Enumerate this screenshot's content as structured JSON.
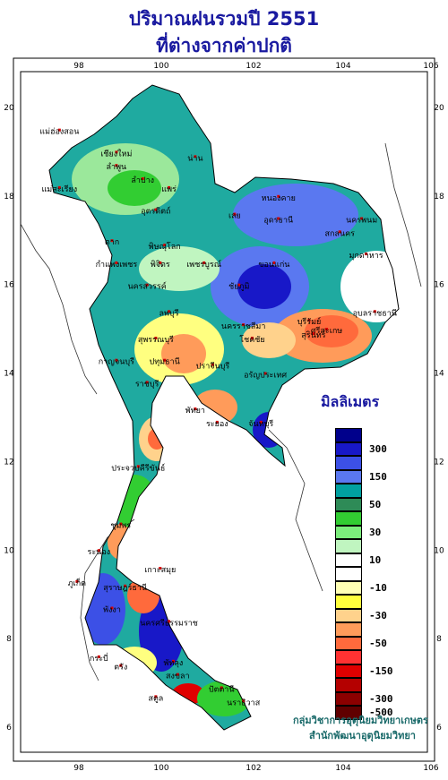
{
  "title": {
    "line1": "ปริมาณฝนรวมปี 2551",
    "line2": "ที่ต่างจากค่าปกติ"
  },
  "axes": {
    "lon_ticks": [
      "98",
      "100",
      "102",
      "104",
      "106"
    ],
    "lat_ticks": [
      "20",
      "18",
      "16",
      "14",
      "12",
      "10",
      "8",
      "6"
    ]
  },
  "legend": {
    "unit": "มิลลิเมตร",
    "bins": [
      {
        "color": "#00008b",
        "label": ""
      },
      {
        "color": "#1818c8",
        "label": "300"
      },
      {
        "color": "#3c50e6",
        "label": ""
      },
      {
        "color": "#5a78f0",
        "label": "150"
      },
      {
        "color": "#00a0a0",
        "label": ""
      },
      {
        "color": "#2e8b57",
        "label": "50"
      },
      {
        "color": "#32cd32",
        "label": ""
      },
      {
        "color": "#7ced7c",
        "label": "30"
      },
      {
        "color": "#c0f5c0",
        "label": ""
      },
      {
        "color": "#ffffff",
        "label": "10"
      },
      {
        "color": "#ffffff",
        "label": ""
      },
      {
        "color": "#ffffb4",
        "label": "-10"
      },
      {
        "color": "#ffff3c",
        "label": ""
      },
      {
        "color": "#ffd28c",
        "label": "-30"
      },
      {
        "color": "#ff9b5a",
        "label": ""
      },
      {
        "color": "#ff6a3c",
        "label": "-50"
      },
      {
        "color": "#ff3232",
        "label": ""
      },
      {
        "color": "#e00000",
        "label": "-150"
      },
      {
        "color": "#b40000",
        "label": ""
      },
      {
        "color": "#8b0000",
        "label": "-300"
      },
      {
        "color": "#600000",
        "label": "-500"
      }
    ]
  },
  "provinces": [
    {
      "name": "แม่ฮ่องสอน",
      "lon": 97.6,
      "lat": 19.4
    },
    {
      "name": "เชียงใหม่",
      "lon": 98.9,
      "lat": 18.9
    },
    {
      "name": "น่าน",
      "lon": 100.7,
      "lat": 18.8
    },
    {
      "name": "ลำพูน",
      "lon": 98.9,
      "lat": 18.6
    },
    {
      "name": "ลำปาง",
      "lon": 99.5,
      "lat": 18.3
    },
    {
      "name": "แพร่",
      "lon": 100.1,
      "lat": 18.1
    },
    {
      "name": "แม่สะเรียง",
      "lon": 97.6,
      "lat": 18.1
    },
    {
      "name": "หนองคาย",
      "lon": 102.6,
      "lat": 17.9
    },
    {
      "name": "อุตรดิตถ์",
      "lon": 99.8,
      "lat": 17.6
    },
    {
      "name": "เลย",
      "lon": 101.6,
      "lat": 17.5
    },
    {
      "name": "อุดรธานี",
      "lon": 102.6,
      "lat": 17.4
    },
    {
      "name": "นครพนม",
      "lon": 104.5,
      "lat": 17.4
    },
    {
      "name": "สกลนคร",
      "lon": 104.0,
      "lat": 17.1
    },
    {
      "name": "ตาก",
      "lon": 98.8,
      "lat": 16.9
    },
    {
      "name": "พิษณุโลก",
      "lon": 100.0,
      "lat": 16.8
    },
    {
      "name": "มุกดาหาร",
      "lon": 104.6,
      "lat": 16.6
    },
    {
      "name": "กำแพงเพชร",
      "lon": 98.9,
      "lat": 16.4
    },
    {
      "name": "พิจิตร",
      "lon": 99.9,
      "lat": 16.4
    },
    {
      "name": "เพชรบูรณ์",
      "lon": 100.9,
      "lat": 16.4
    },
    {
      "name": "ขอนแก่น",
      "lon": 102.5,
      "lat": 16.4
    },
    {
      "name": "ชัยภูมิ",
      "lon": 101.7,
      "lat": 15.9
    },
    {
      "name": "นครสวรรค์",
      "lon": 99.6,
      "lat": 15.9
    },
    {
      "name": "อุบลราชธานี",
      "lon": 104.8,
      "lat": 15.3
    },
    {
      "name": "ลพบุรี",
      "lon": 100.1,
      "lat": 15.3
    },
    {
      "name": "บุรีรัมย์",
      "lon": 103.3,
      "lat": 15.1
    },
    {
      "name": "นครราชสีมา",
      "lon": 101.8,
      "lat": 15.0
    },
    {
      "name": "สุรินทร์",
      "lon": 103.4,
      "lat": 14.8
    },
    {
      "name": "สุพรรณบุรี",
      "lon": 99.8,
      "lat": 14.7
    },
    {
      "name": "ศรีสะเกษ",
      "lon": 103.7,
      "lat": 14.9
    },
    {
      "name": "โชคชัย",
      "lon": 102.0,
      "lat": 14.7
    },
    {
      "name": "กาญจนบุรี",
      "lon": 98.9,
      "lat": 14.2
    },
    {
      "name": "ปทุมธานี",
      "lon": 100.0,
      "lat": 14.2
    },
    {
      "name": "ปราจีนบุรี",
      "lon": 101.1,
      "lat": 14.1
    },
    {
      "name": "อรัญประเทศ",
      "lon": 102.3,
      "lat": 13.9
    },
    {
      "name": "ราชบุรี",
      "lon": 99.6,
      "lat": 13.7
    },
    {
      "name": "ระยอง",
      "lon": 101.2,
      "lat": 12.8
    },
    {
      "name": "พัทยา",
      "lon": 100.7,
      "lat": 13.1
    },
    {
      "name": "จันทบุรี",
      "lon": 102.2,
      "lat": 12.8
    },
    {
      "name": "ประจวบคีรีขันธ์",
      "lon": 99.4,
      "lat": 11.8
    },
    {
      "name": "ชุมพร",
      "lon": 99.0,
      "lat": 10.5
    },
    {
      "name": "ระนอง",
      "lon": 98.5,
      "lat": 9.9
    },
    {
      "name": "เกาะสมุย",
      "lon": 99.9,
      "lat": 9.5
    },
    {
      "name": "ภูเก็ต",
      "lon": 98.0,
      "lat": 9.2
    },
    {
      "name": "สุราษฎร์ธานี",
      "lon": 99.1,
      "lat": 9.1
    },
    {
      "name": "พังงา",
      "lon": 98.8,
      "lat": 8.6
    },
    {
      "name": "นครศรีธรรมราช",
      "lon": 100.1,
      "lat": 8.3
    },
    {
      "name": "กระบี่",
      "lon": 98.5,
      "lat": 7.5
    },
    {
      "name": "ตรัง",
      "lon": 99.0,
      "lat": 7.3
    },
    {
      "name": "พัทลุง",
      "lon": 100.2,
      "lat": 7.4
    },
    {
      "name": "สงขลา",
      "lon": 100.3,
      "lat": 7.1
    },
    {
      "name": "ปัตตานี",
      "lon": 101.3,
      "lat": 6.8
    },
    {
      "name": "สตูล",
      "lon": 99.8,
      "lat": 6.6
    },
    {
      "name": "นราธิวาส",
      "lon": 101.8,
      "lat": 6.5
    }
  ],
  "credit": {
    "line1": "กลุ่มวิชาการอุตุนิยมวิทยาเกษตร",
    "line2": "สำนักพัฒนาอุตุนิยมวิทยา"
  }
}
